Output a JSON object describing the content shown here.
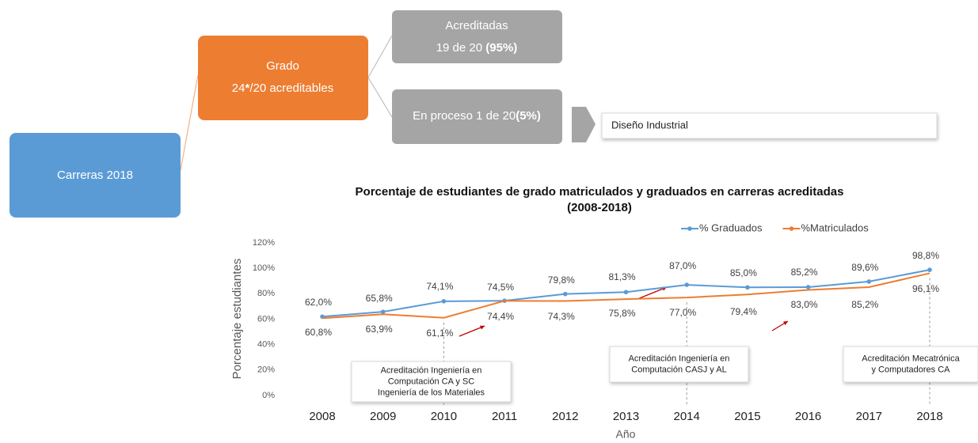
{
  "diagram": {
    "root": {
      "label": "Carreras 2018"
    },
    "grado": {
      "line1": "Grado",
      "line2": [
        {
          "text": "24",
          "bold": false
        },
        {
          "text": "*",
          "bold": true
        },
        {
          "text": "/20 acreditables",
          "bold": false
        }
      ]
    },
    "acreditadas": {
      "line1": "Acreditadas",
      "line2": [
        {
          "text": "19 de 20 ",
          "bold": false
        },
        {
          "text": "(95%)",
          "bold": true
        }
      ]
    },
    "proceso": {
      "line1": [
        {
          "text": "En proceso 1 de 20",
          "bold": false
        },
        {
          "text": "(5%)",
          "bold": true
        }
      ]
    },
    "detail": {
      "label": "Diseño Industrial"
    }
  },
  "chart_data": {
    "type": "line",
    "title": [
      "Porcentaje de estudiantes de grado matriculados y graduados en carreras acreditadas",
      "(2008-2018)"
    ],
    "x_label": "Año",
    "y_label": "Porcentaje estudiantes",
    "categories": [
      "2008",
      "2009",
      "2010",
      "2011",
      "2012",
      "2013",
      "2014",
      "2015",
      "2016",
      "2017",
      "2018"
    ],
    "ylim": [
      0,
      120
    ],
    "yticks": [
      {
        "value": 0,
        "label": "0%"
      },
      {
        "value": 20,
        "label": "20%"
      },
      {
        "value": 40,
        "label": "40%"
      },
      {
        "value": 60,
        "label": "60%"
      },
      {
        "value": 80,
        "label": "80%"
      },
      {
        "value": 100,
        "label": "100%"
      },
      {
        "value": 120,
        "label": "120%"
      }
    ],
    "legend": "top-right",
    "series": [
      {
        "name": "% Graduados",
        "color": "#5b9bd5",
        "values": [
          62.0,
          65.8,
          74.1,
          74.5,
          79.8,
          81.3,
          87.0,
          85.0,
          85.2,
          89.6,
          98.8
        ],
        "value_labels": [
          "62,0%",
          "65,8%",
          "74,1%",
          "74,5%",
          "79,8%",
          "81,3%",
          "87,0%",
          "85,0%",
          "85,2%",
          "89,6%",
          "98,8%"
        ]
      },
      {
        "name": "%Matriculados",
        "color": "#ed7d31",
        "values": [
          60.8,
          63.9,
          61.1,
          74.4,
          74.3,
          75.8,
          77.0,
          79.4,
          83.0,
          85.2,
          96.1
        ],
        "value_labels": [
          "60,8%",
          "63,9%",
          "61,1%",
          "74,4%",
          "74,3%",
          "75,8%",
          "77,0%",
          "79,4%",
          "83,0%",
          "85,2%",
          "96,1%"
        ]
      }
    ],
    "annotations": [
      {
        "lines": [
          "Acreditación Ingeniería en",
          "Computación CA y SC",
          "Ingeniería de los Materiales"
        ]
      },
      {
        "lines": [
          "Acreditación Ingeniería en",
          "Computación CASJ y AL"
        ]
      },
      {
        "lines": [
          "Acreditación Mecatrónica",
          "y Computadores CA"
        ]
      }
    ]
  }
}
